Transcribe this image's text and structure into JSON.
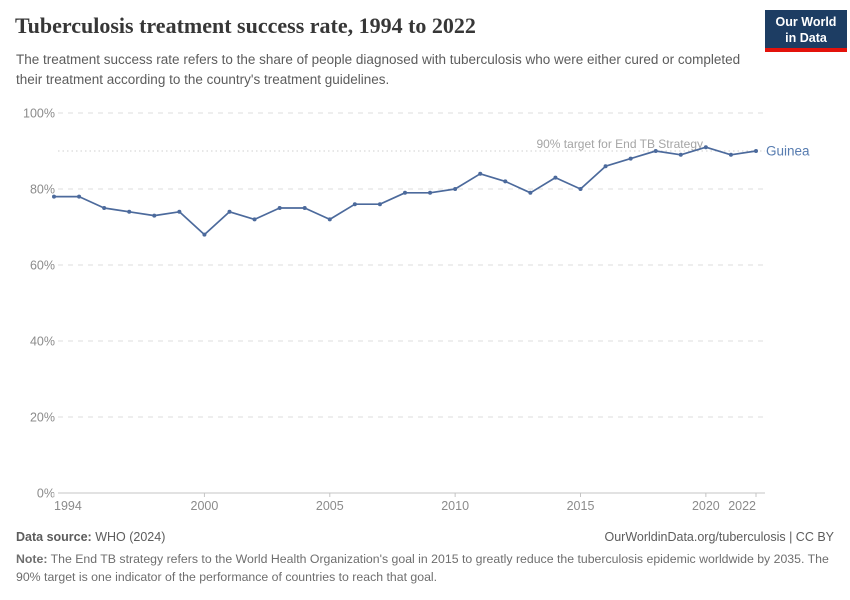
{
  "header": {
    "title": "Tuberculosis treatment success rate, 1994 to 2022",
    "subtitle": "The treatment success rate refers to the share of people diagnosed with tuberculosis who were either cured or completed their treatment according to the country's treatment guidelines.",
    "logo": {
      "line1": "Our World",
      "line2": "in Data",
      "bg_color": "#1d3d63",
      "stripe_color": "#e3120b"
    }
  },
  "chart_data": {
    "type": "line",
    "title": "Tuberculosis treatment success rate, 1994 to 2022",
    "x": [
      1994,
      1995,
      1996,
      1997,
      1998,
      1999,
      2000,
      2001,
      2002,
      2003,
      2004,
      2005,
      2006,
      2007,
      2008,
      2009,
      2010,
      2011,
      2012,
      2013,
      2014,
      2015,
      2016,
      2017,
      2018,
      2019,
      2020,
      2021,
      2022
    ],
    "series": [
      {
        "name": "Guinea",
        "color": "#4c6a9c",
        "values": [
          78,
          78,
          75,
          74,
          73,
          74,
          68,
          74,
          72,
          75,
          75,
          72,
          76,
          76,
          79,
          79,
          80,
          84,
          82,
          79,
          83,
          80,
          86,
          88,
          90,
          89,
          91,
          89,
          90
        ]
      }
    ],
    "ylim": [
      0,
      100
    ],
    "yticks": [
      0,
      20,
      40,
      60,
      80,
      100
    ],
    "ytick_suffix": "%",
    "xticks": [
      1994,
      2000,
      2005,
      2010,
      2015,
      2020,
      2022
    ],
    "grid": "horizontal-dashed",
    "legend_position": "end-of-line",
    "end_label": "Guinea",
    "target_line": {
      "value": 90,
      "label": "90% target for End TB Strategy"
    }
  },
  "footer": {
    "source_label": "Data source:",
    "source_value": " WHO (2024)",
    "link": "OurWorldinData.org/tuberculosis | CC BY",
    "note_label": "Note:",
    "note_value": " The End TB strategy refers to the World Health Organization's goal in 2015 to greatly reduce the tuberculosis epidemic worldwide by 2035. The 90% target is one indicator of the performance of countries to reach that goal."
  },
  "colors": {
    "line": "#4c6a9c",
    "end_label": "#577cb0",
    "gridline": "#dcdcdc",
    "axis_line": "#c4c4c4",
    "tick_label": "#8b8b8b",
    "annotation": "#a5a5a5",
    "logo_bg": "#1d3d63",
    "logo_stripe": "#e3120b"
  }
}
